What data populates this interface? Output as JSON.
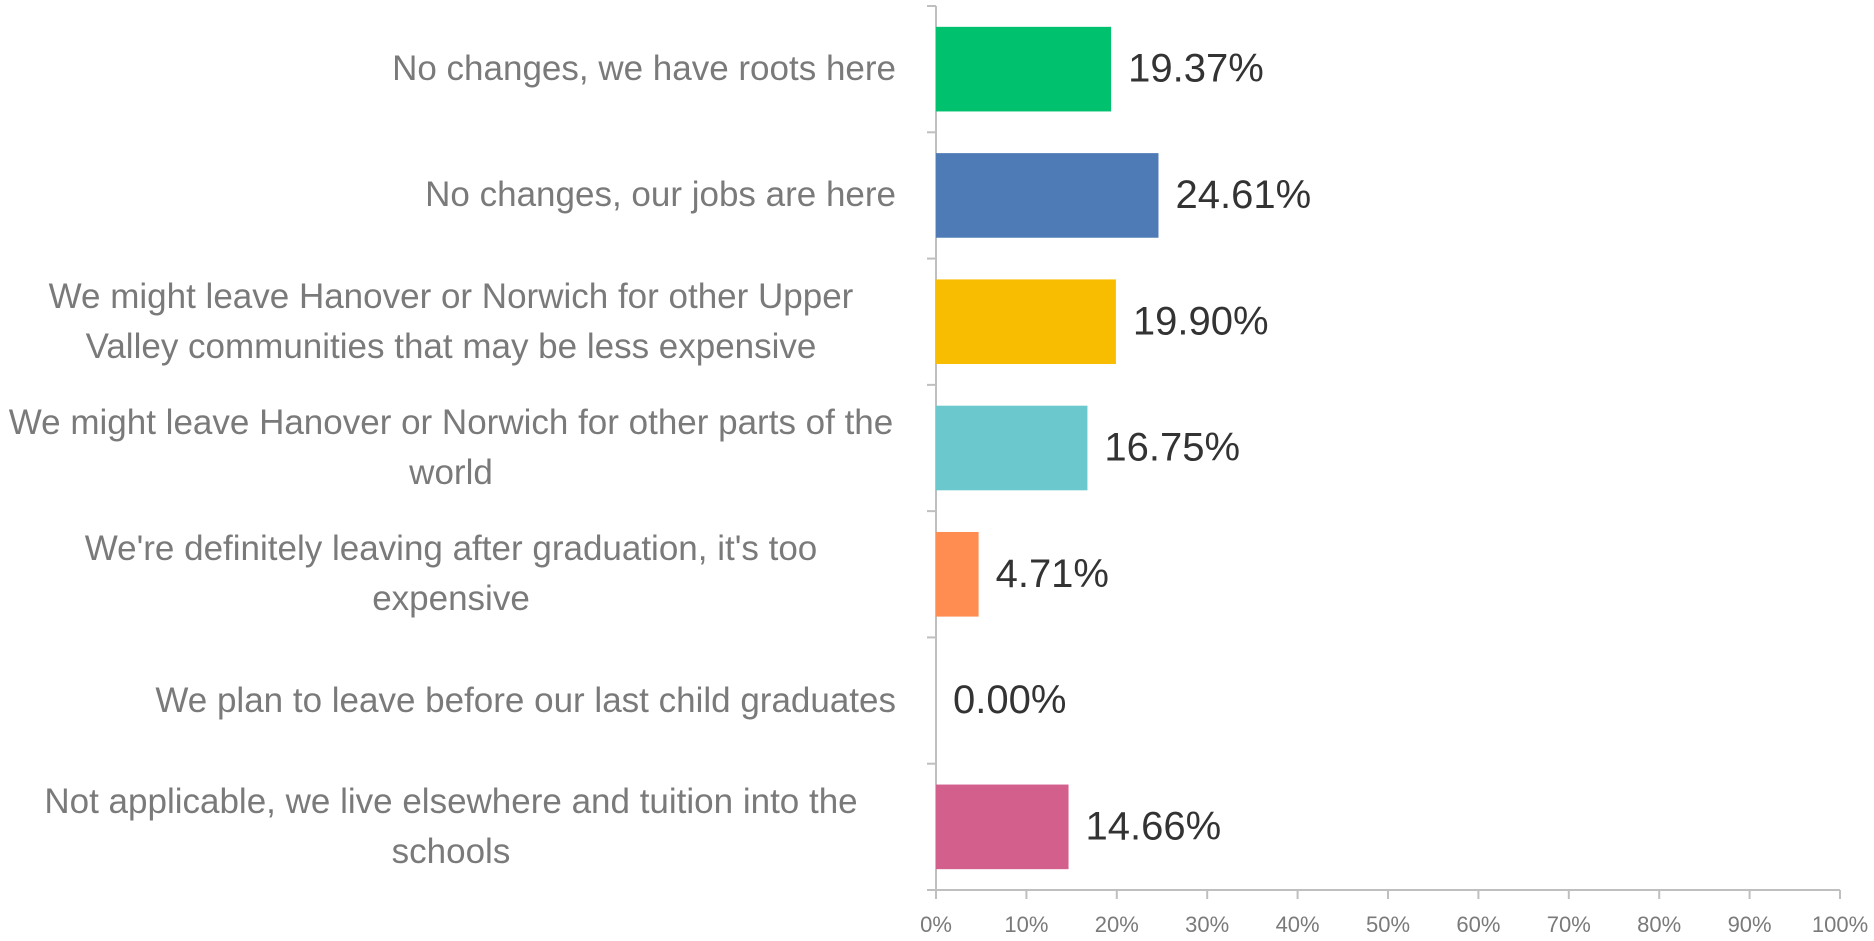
{
  "chart_data": {
    "type": "bar",
    "orientation": "horizontal",
    "categories": [
      "No changes, we have roots here",
      "No changes, our jobs are here",
      "We might leave Hanover or Norwich for other Upper Valley communities that may be less expensive",
      "We might leave Hanover or Norwich for other parts of the world",
      "We're definitely leaving after graduation, it's too expensive",
      "We plan to leave before our last child graduates",
      "Not applicable, we live elsewhere and tuition into the schools"
    ],
    "values": [
      19.37,
      24.61,
      19.9,
      16.75,
      4.71,
      0.0,
      14.66
    ],
    "value_labels": [
      "19.37%",
      "24.61%",
      "19.90%",
      "16.75%",
      "4.71%",
      "0.00%",
      "14.66%"
    ],
    "colors": [
      "#00c16e",
      "#4e7ab5",
      "#f8bd00",
      "#6bc8cc",
      "#ff8c50",
      "#888888",
      "#d35f8d"
    ],
    "xlim": [
      0,
      100
    ],
    "xticks": [
      {
        "value": 0,
        "label": "0%"
      },
      {
        "value": 10,
        "label": "10%"
      },
      {
        "value": 20,
        "label": "20%"
      },
      {
        "value": 30,
        "label": "30%"
      },
      {
        "value": 40,
        "label": "40%"
      },
      {
        "value": 50,
        "label": "50%"
      },
      {
        "value": 60,
        "label": "60%"
      },
      {
        "value": 70,
        "label": "70%"
      },
      {
        "value": 80,
        "label": "80%"
      },
      {
        "value": 90,
        "label": "90%"
      },
      {
        "value": 100,
        "label": "100%"
      }
    ],
    "grid": false
  }
}
